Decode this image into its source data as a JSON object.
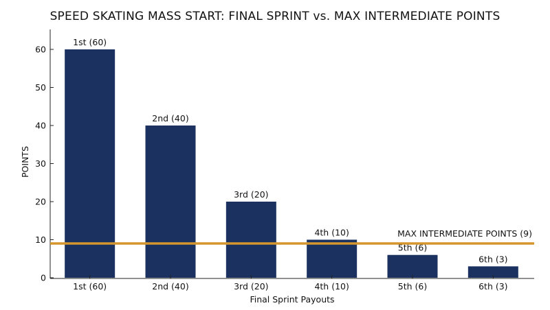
{
  "chart_data": {
    "type": "bar",
    "title": "SPEED SKATING MASS START: FINAL SPRINT vs. MAX INTERMEDIATE POINTS",
    "xlabel": "Final Sprint Payouts",
    "ylabel": "POINTS",
    "categories": [
      "1st (60)",
      "2nd (40)",
      "3rd (20)",
      "4th (10)",
      "5th (6)",
      "6th (3)"
    ],
    "values": [
      60,
      40,
      20,
      10,
      6,
      3
    ],
    "data_labels": [
      "1st (60)",
      "2nd (40)",
      "3rd (20)",
      "4th (10)",
      "5th (6)",
      "6th (3)"
    ],
    "ylim": [
      0,
      60
    ],
    "yticks": [
      0,
      10,
      20,
      30,
      40,
      50,
      60
    ],
    "grid": false,
    "bar_color": "#1b3260",
    "reference_line": {
      "value": 9,
      "label": "MAX INTERMEDIATE POINTS (9)",
      "color": "#d6962e"
    }
  }
}
